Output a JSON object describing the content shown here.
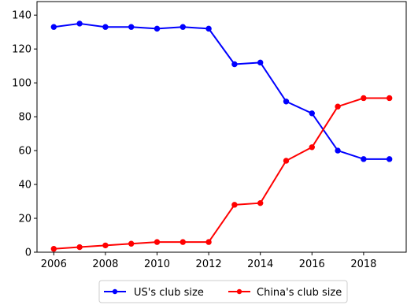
{
  "chart_data": {
    "type": "line",
    "x": [
      2006,
      2007,
      2008,
      2009,
      2010,
      2011,
      2012,
      2013,
      2014,
      2015,
      2016,
      2017,
      2018,
      2019
    ],
    "series": [
      {
        "name": "US's club size",
        "color": "#0000ff",
        "values": [
          133,
          135,
          133,
          133,
          132,
          133,
          132,
          111,
          112,
          89,
          82,
          60,
          55,
          55
        ]
      },
      {
        "name": "China's club size",
        "color": "#ff0000",
        "values": [
          2,
          3,
          4,
          5,
          6,
          6,
          6,
          28,
          29,
          54,
          62,
          86,
          91,
          91
        ]
      }
    ],
    "xticks": [
      "2006",
      "2008",
      "2010",
      "2012",
      "2014",
      "2016",
      "2018"
    ],
    "yticks": [
      "0",
      "20",
      "40",
      "60",
      "80",
      "100",
      "120",
      "140"
    ],
    "xlim": [
      2005.35,
      2019.65
    ],
    "ylim": [
      0,
      148
    ],
    "grid": false,
    "legend_position": "below center",
    "title": "",
    "xlabel": "",
    "ylabel": ""
  }
}
